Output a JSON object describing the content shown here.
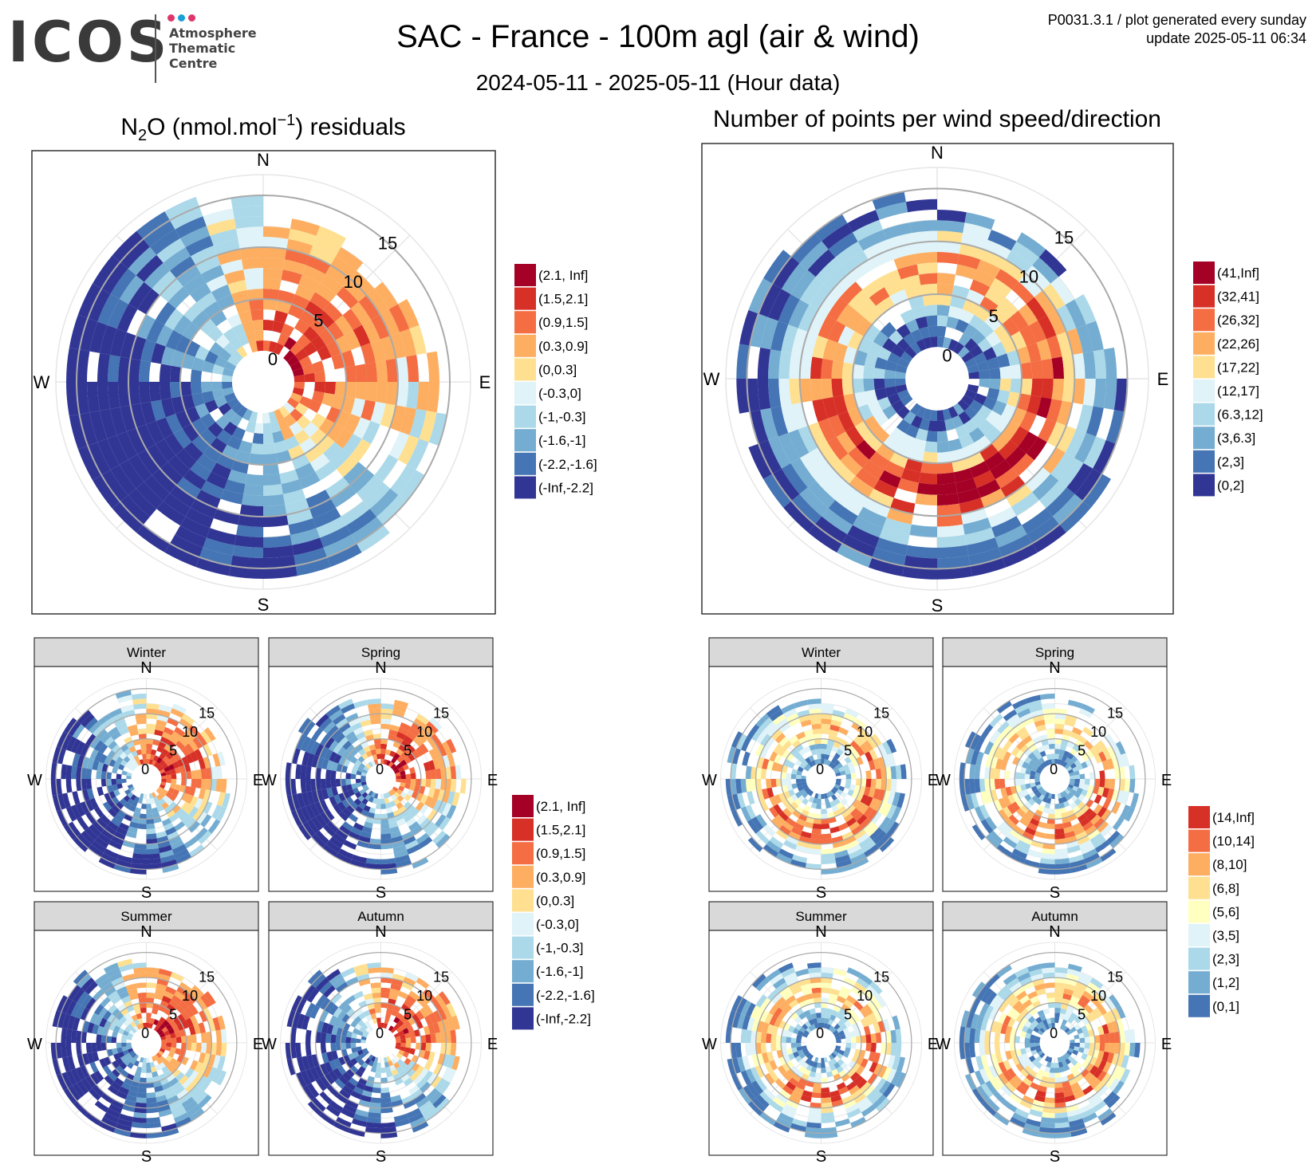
{
  "header": {
    "logo_word": "ICOS",
    "logo_lines": [
      "Atmosphere",
      "Thematic",
      "Centre"
    ],
    "logo_dot_colors": [
      "#e0356b",
      "#1aa0d8",
      "#e0356b"
    ],
    "title": "SAC - France - 100m agl (air & wind)",
    "subtitle": "2024-05-11 - 2025-05-11 (Hour data)",
    "meta_line1": "P0031.3.1 / plot generated every sunday",
    "meta_line2": "update  2025-05-11 06:34"
  },
  "compass": [
    "N",
    "E",
    "S",
    "W"
  ],
  "seasons": [
    "Winter",
    "Spring",
    "Summer",
    "Autumn"
  ],
  "chart_data": [
    {
      "type": "polar heatmap",
      "title_parts": [
        "N",
        "2",
        "O (nmol.mol",
        "−1",
        ") residuals"
      ],
      "r_ticks": [
        0,
        5,
        10,
        15
      ],
      "legend": [
        "(2.1, Inf]",
        "(1.5,2.1]",
        "(0.9,1.5]",
        "(0.3,0.9]",
        "(0,0.3]",
        "(-0.3,0]",
        "(-1,-0.3]",
        "(-1.6,-1]",
        "(-2.2,-1.6]",
        "(-Inf,-2.2]"
      ],
      "colors": [
        "#a50026",
        "#d73027",
        "#f46d43",
        "#fdae61",
        "#fee090",
        "#e0f3f8",
        "#abd9e9",
        "#74add1",
        "#4575b4",
        "#313695"
      ]
    },
    {
      "type": "polar heatmap",
      "title": "Number of points per wind speed/direction",
      "r_ticks": [
        0,
        5,
        10,
        15
      ],
      "legend": [
        "(41,Inf]",
        "(32,41]",
        "(26,32]",
        "(22,26]",
        "(17,22]",
        "(12,17]",
        "(6.3,12]",
        "(3,6.3]",
        "(2,3]",
        "(0,2]"
      ],
      "colors": [
        "#a50026",
        "#d73027",
        "#f46d43",
        "#fdae61",
        "#fee090",
        "#e0f3f8",
        "#abd9e9",
        "#74add1",
        "#4575b4",
        "#313695"
      ]
    },
    {
      "type": "polar heatmap",
      "facets": [
        "Winter",
        "Spring",
        "Summer",
        "Autumn"
      ],
      "r_ticks": [
        0,
        5,
        10,
        15
      ],
      "legend": [
        "(2.1, Inf]",
        "(1.5,2.1]",
        "(0.9,1.5]",
        "(0.3,0.9]",
        "(0,0.3]",
        "(-0.3,0]",
        "(-1,-0.3]",
        "(-1.6,-1]",
        "(-2.2,-1.6]",
        "(-Inf,-2.2]"
      ],
      "colors": [
        "#a50026",
        "#d73027",
        "#f46d43",
        "#fdae61",
        "#fee090",
        "#e0f3f8",
        "#abd9e9",
        "#74add1",
        "#4575b4",
        "#313695"
      ]
    },
    {
      "type": "polar heatmap",
      "facets": [
        "Winter",
        "Spring",
        "Summer",
        "Autumn"
      ],
      "r_ticks": [
        0,
        5,
        10,
        15
      ],
      "legend": [
        "(14,Inf]",
        "(10,14]",
        "(8,10]",
        "(6,8]",
        "(5,6]",
        "(3,5]",
        "(2,3]",
        "(1,2]",
        "(0,1]"
      ],
      "colors": [
        "#d73027",
        "#f46d43",
        "#fdae61",
        "#fee090",
        "#ffffbf",
        "#e0f3f8",
        "#abd9e9",
        "#74add1",
        "#4575b4"
      ]
    }
  ]
}
